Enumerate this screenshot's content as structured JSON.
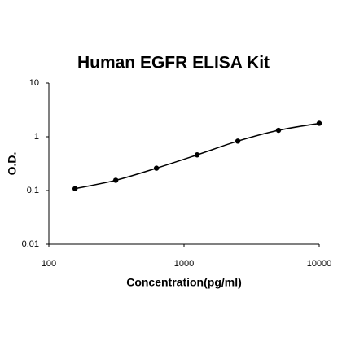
{
  "chart_data": {
    "type": "scatter",
    "title": "Human EGFR ELISA Kit",
    "x_label": "Concentration(pg/ml)",
    "y_label": "O.D.",
    "x_log": true,
    "y_log": true,
    "line": true,
    "xlim": [
      100,
      10000
    ],
    "xticks": [
      100,
      1000,
      10000
    ],
    "ylim": [
      0.01,
      10
    ],
    "yticks": [
      0.01,
      0.1,
      1,
      10
    ],
    "series": [
      {
        "color": "#000000",
        "x": [
          156.25,
          312.5,
          625,
          1250,
          2500,
          5000,
          10000
        ],
        "values": [
          0.108,
          0.155,
          0.26,
          0.46,
          0.83,
          1.32,
          1.78
        ]
      }
    ]
  }
}
